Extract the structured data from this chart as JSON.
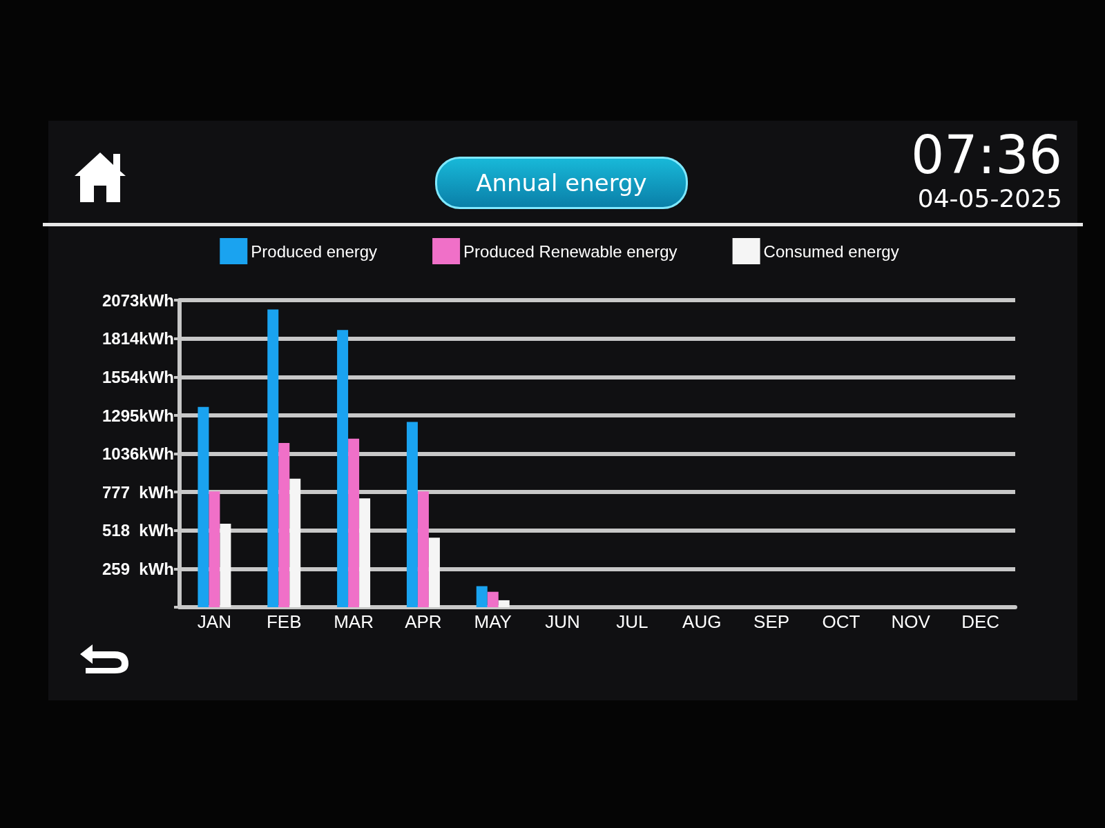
{
  "chart_data": {
    "type": "bar",
    "title": "Annual energy",
    "annotations": [
      "07:36",
      "04-05-2025"
    ],
    "categories": [
      "JAN",
      "FEB",
      "MAR",
      "APR",
      "MAY",
      "JUN",
      "JUL",
      "AUG",
      "SEP",
      "OCT",
      "NOV",
      "DEC"
    ],
    "series": [
      {
        "name": "Produced energy",
        "color": "#1aa3f0",
        "values": [
          1352,
          2010,
          1872,
          1251,
          142,
          0,
          0,
          0,
          0,
          0,
          0,
          0
        ]
      },
      {
        "name": "Produced Renewable energy",
        "color": "#f070c8",
        "values": [
          782,
          1109,
          1138,
          782,
          104,
          0,
          0,
          0,
          0,
          0,
          0,
          0
        ]
      },
      {
        "name": "Consumed energy",
        "color": "#f5f5f5",
        "values": [
          564,
          868,
          735,
          469,
          47,
          0,
          0,
          0,
          0,
          0,
          0,
          0
        ]
      }
    ],
    "ylim": [
      0,
      2073
    ],
    "yticks": [
      {
        "value": 0,
        "label": null
      },
      {
        "value": 259,
        "label": "259  kWh"
      },
      {
        "value": 518,
        "label": "518  kWh"
      },
      {
        "value": 777,
        "label": "777  kWh"
      },
      {
        "value": 1036,
        "label": "1036kWh"
      },
      {
        "value": 1295,
        "label": "1295kWh"
      },
      {
        "value": 1554,
        "label": "1554kWh"
      },
      {
        "value": 1814,
        "label": "1814kWh"
      },
      {
        "value": 2073,
        "label": "2073kWh"
      }
    ],
    "grid": "y",
    "legend": "top"
  }
}
